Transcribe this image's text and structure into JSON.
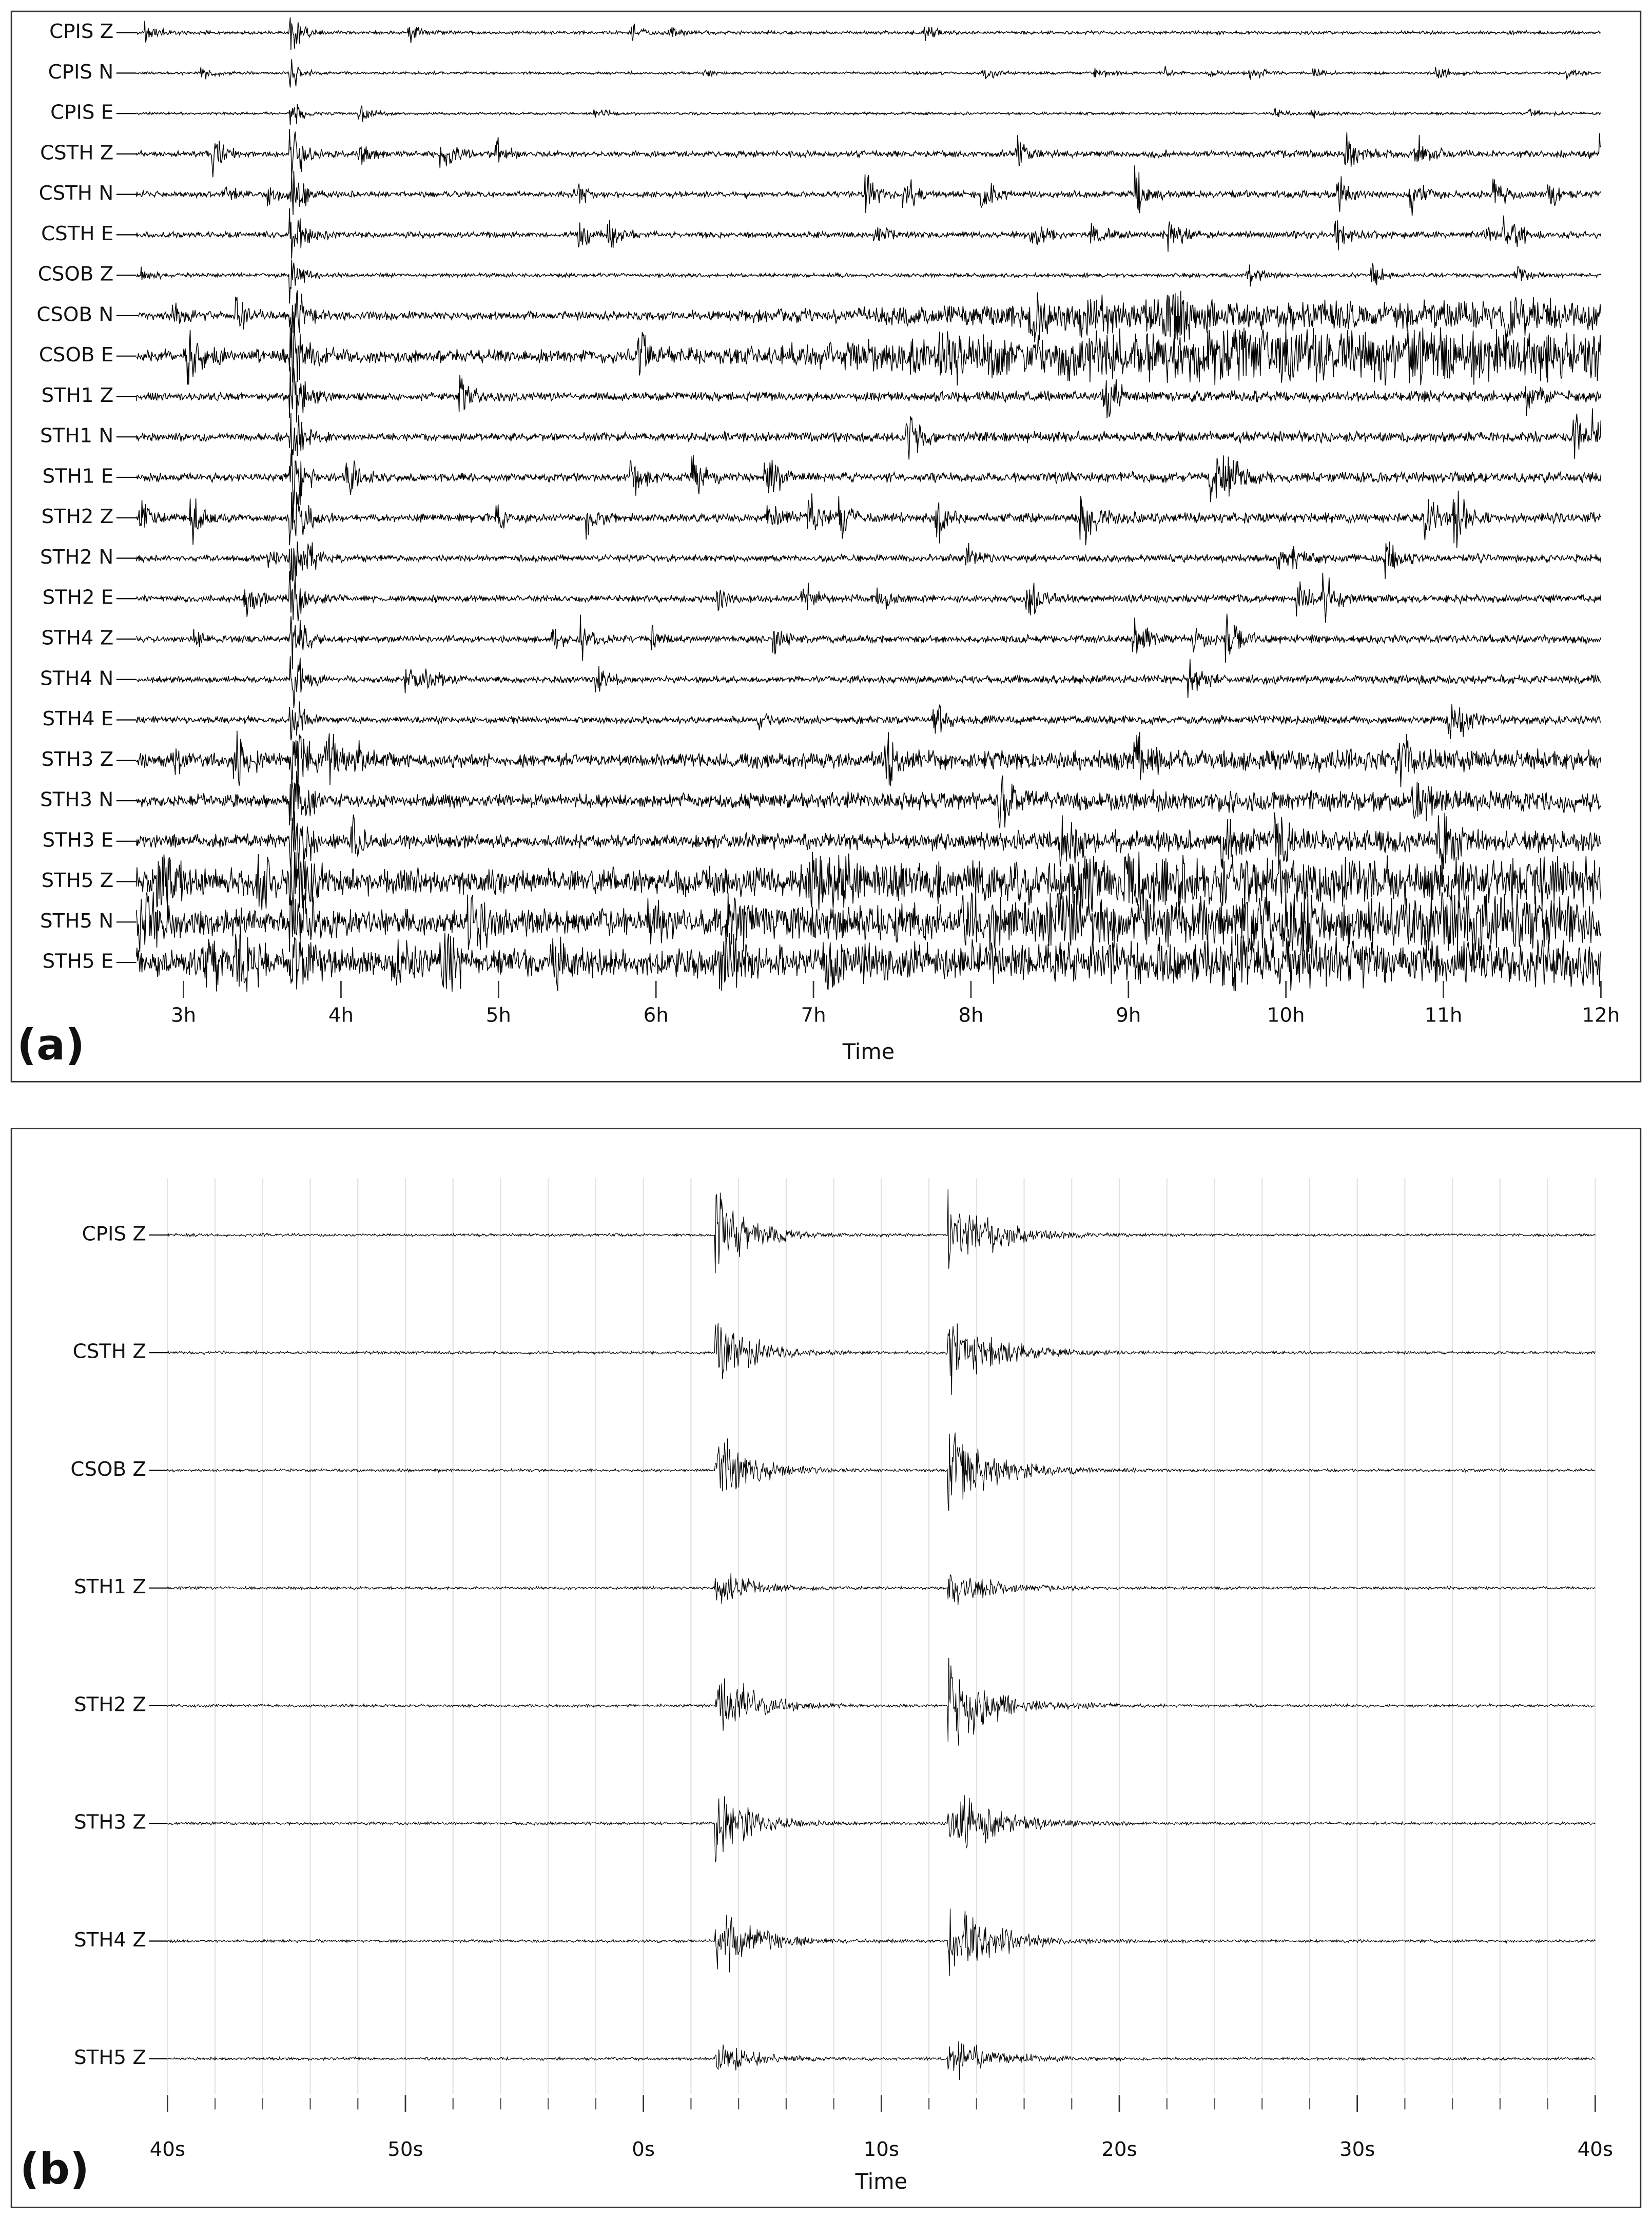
{
  "chart_data": [
    {
      "type": "seismogram",
      "panel_label": "(a)",
      "xlabel": "Time",
      "categories": [
        "CPIS Z",
        "CPIS N",
        "CPIS E",
        "CSTH Z",
        "CSTH N",
        "CSTH E",
        "CSOB Z",
        "CSOB N",
        "CSOB E",
        "STH1 Z",
        "STH1 N",
        "STH1 E",
        "STH2 Z",
        "STH2 N",
        "STH2 E",
        "STH4 Z",
        "STH4 N",
        "STH4 E",
        "STH3 Z",
        "STH3 N",
        "STH3 E",
        "STH5 Z",
        "STH5 N",
        "STH5 E"
      ],
      "xlim": [
        2.7,
        12.0
      ],
      "xticks": [
        {
          "value": 3,
          "label": "3h"
        },
        {
          "value": 4,
          "label": "4h"
        },
        {
          "value": 5,
          "label": "5h"
        },
        {
          "value": 6,
          "label": "6h"
        },
        {
          "value": 7,
          "label": "7h"
        },
        {
          "value": 8,
          "label": "8h"
        },
        {
          "value": 9,
          "label": "9h"
        },
        {
          "value": 10,
          "label": "10h"
        },
        {
          "value": 11,
          "label": "11h"
        },
        {
          "value": 12,
          "label": "12h"
        }
      ],
      "grid": false
    },
    {
      "type": "seismogram",
      "panel_label": "(b)",
      "xlabel": "Time",
      "categories": [
        "CPIS Z",
        "CSTH Z",
        "CSOB Z",
        "STH1 Z",
        "STH2 Z",
        "STH3 Z",
        "STH4 Z",
        "STH5 Z"
      ],
      "xlim": [
        -20,
        40
      ],
      "xticks": [
        {
          "value": -20,
          "label": "40s"
        },
        {
          "value": -10,
          "label": "50s"
        },
        {
          "value": 0,
          "label": "0s"
        },
        {
          "value": 10,
          "label": "10s"
        },
        {
          "value": 20,
          "label": "20s"
        },
        {
          "value": 30,
          "label": "30s"
        },
        {
          "value": 40,
          "label": "40s"
        }
      ],
      "grid": true
    }
  ]
}
